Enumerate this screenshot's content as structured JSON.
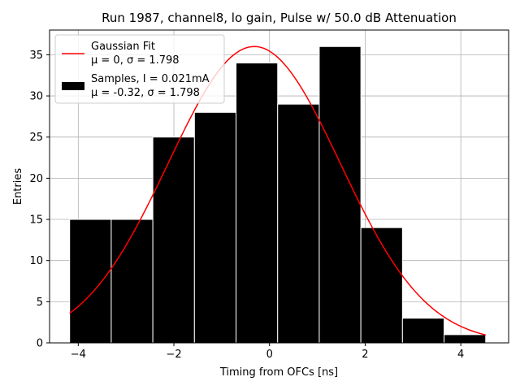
{
  "chart_data": {
    "type": "bar",
    "title": "Run 1987, channel8, lo gain, Pulse w/ 50.0 dB Attenuation",
    "xlabel": "Timing from OFCs [ns]",
    "ylabel": "Entries",
    "xlim": [
      -4.6,
      5.0
    ],
    "ylim": [
      0,
      38
    ],
    "xticks": [
      -4,
      -2,
      0,
      2,
      4
    ],
    "xtick_labels": [
      "−4",
      "−2",
      "0",
      "2",
      "4"
    ],
    "yticks": [
      0,
      5,
      10,
      15,
      20,
      25,
      30,
      35
    ],
    "ytick_labels": [
      "0",
      "5",
      "10",
      "15",
      "20",
      "25",
      "30",
      "35"
    ],
    "grid": true,
    "legend_position": "top-left",
    "bins": {
      "edges": [
        -4.18,
        -3.31,
        -2.44,
        -1.57,
        -0.7,
        0.17,
        1.04,
        1.91,
        2.78,
        3.65,
        4.52
      ],
      "counts": [
        15,
        15,
        25,
        28,
        34,
        29,
        36,
        14,
        3,
        1
      ],
      "color": "#000000",
      "edge_color": "#ffffff"
    },
    "fit_curve": {
      "color": "#ff0000",
      "amplitude": 36.0,
      "mu": -0.32,
      "sigma": 1.798,
      "x_range": [
        -4.18,
        4.52
      ]
    },
    "legend": [
      {
        "kind": "line",
        "color": "#ff0000",
        "lines": [
          "Gaussian Fit",
          "μ = 0, σ = 1.798"
        ]
      },
      {
        "kind": "box",
        "color": "#000000",
        "lines": [
          "Samples, I = 0.021mA",
          "μ = -0.32, σ = 1.798"
        ]
      }
    ]
  }
}
